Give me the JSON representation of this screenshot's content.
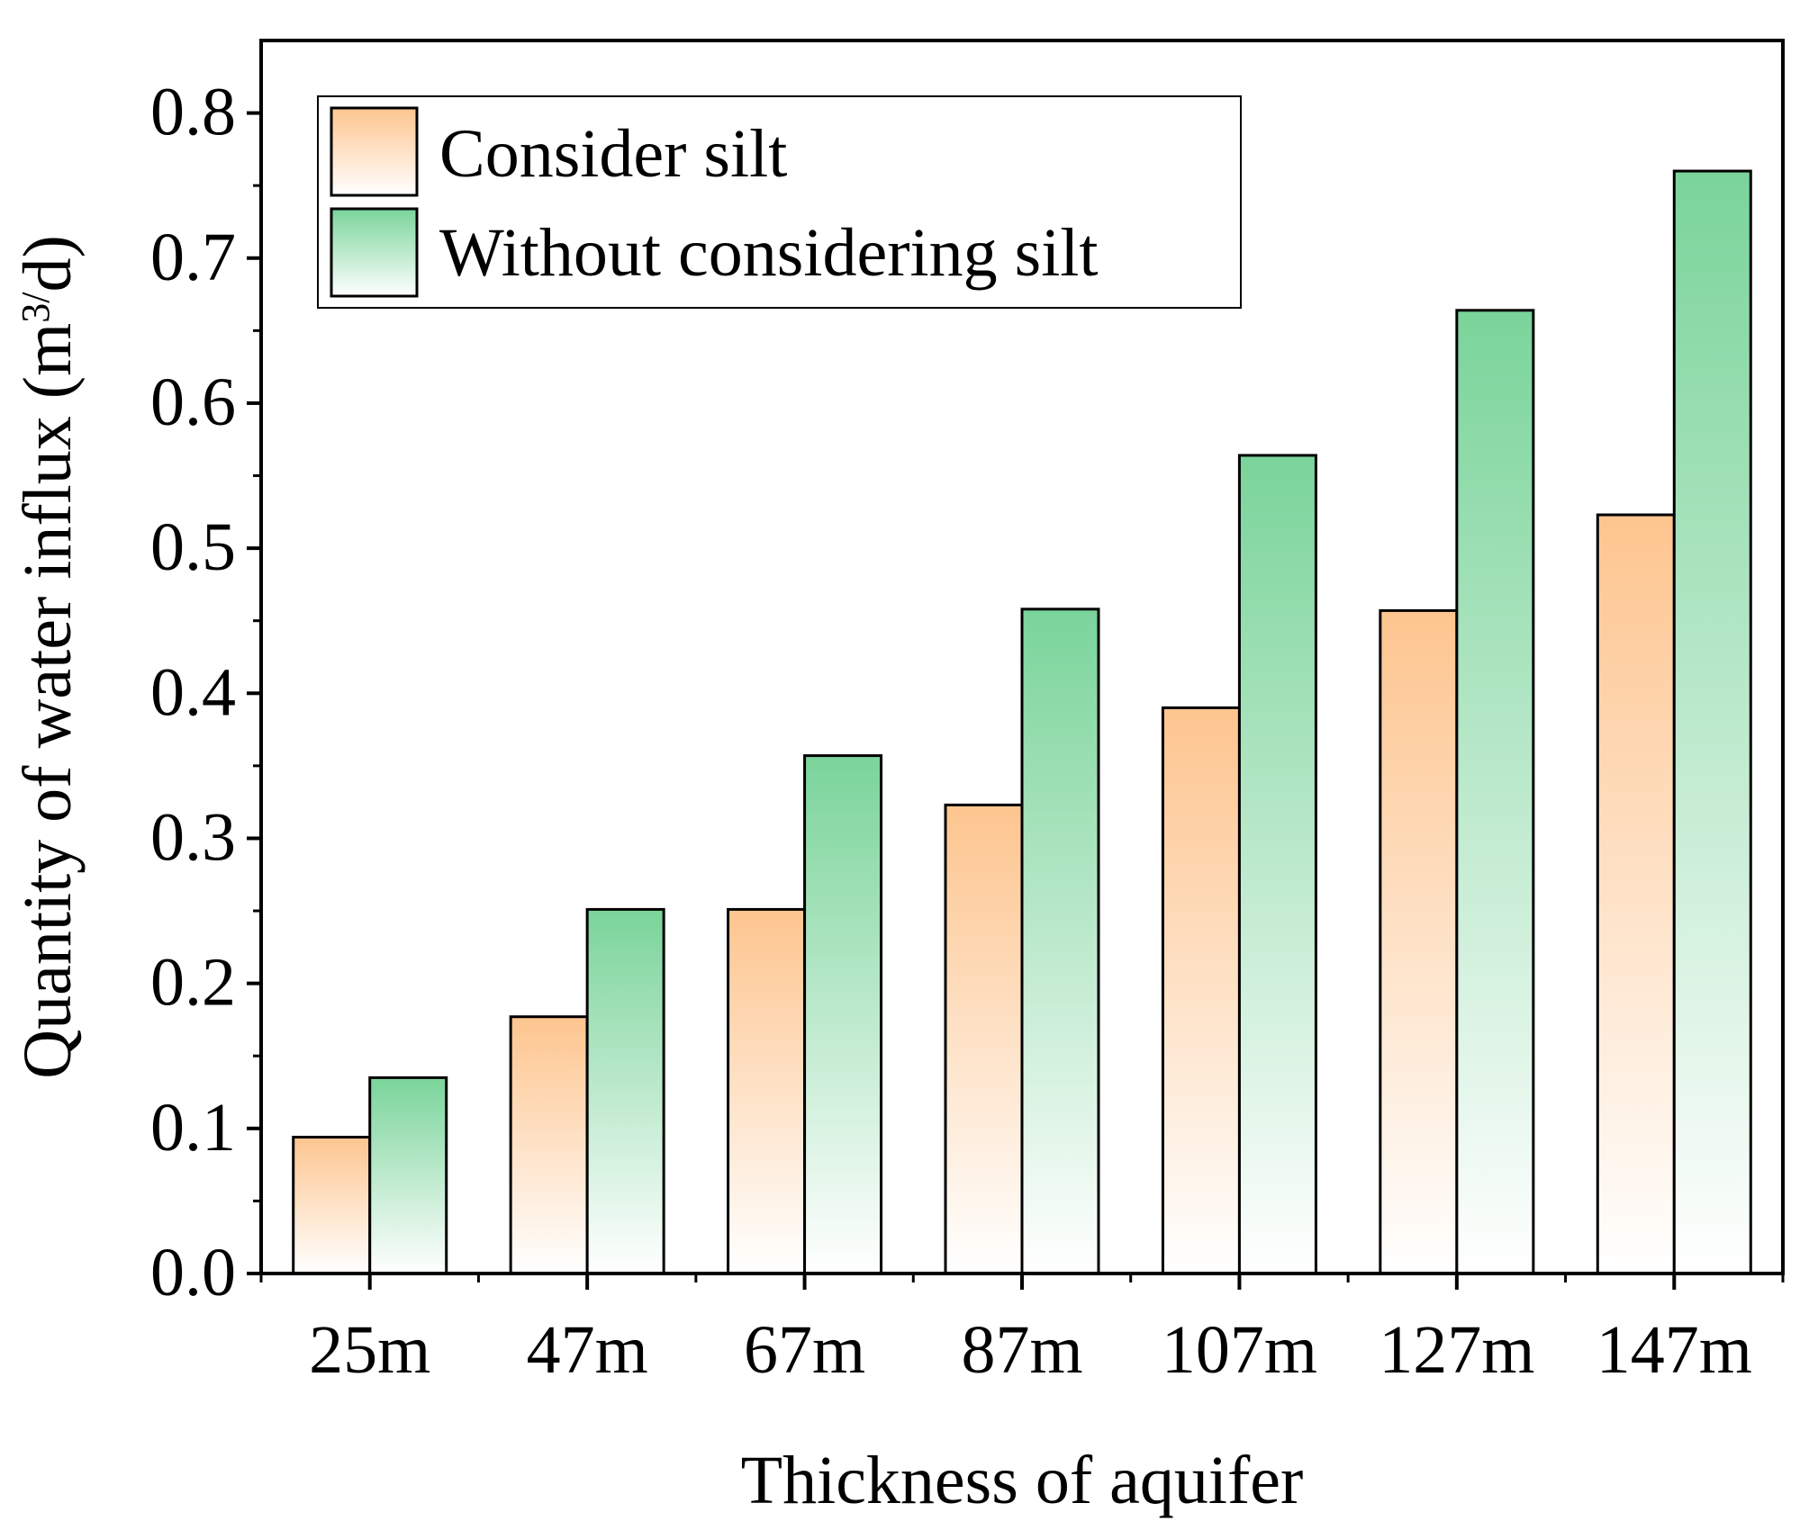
{
  "chart_data": {
    "type": "bar",
    "title": "",
    "xlabel": "Thickness of aquifer",
    "ylabel": {
      "main": "Quantity of water influx (m",
      "sup": "3/",
      "tail": "d)"
    },
    "categories": [
      "25m",
      "47m",
      "67m",
      "87m",
      "107m",
      "127m",
      "147m"
    ],
    "series": [
      {
        "name": "Consider silt",
        "values": [
          0.094,
          0.177,
          0.251,
          0.323,
          0.39,
          0.457,
          0.523
        ],
        "color_top": "#fdc58f",
        "color_bottom": "#ffffff"
      },
      {
        "name": "Without considering silt",
        "values": [
          0.135,
          0.251,
          0.357,
          0.458,
          0.564,
          0.664,
          0.76
        ],
        "color_top": "#7ad49a",
        "color_bottom": "#ffffff"
      }
    ],
    "ylim": [
      0.0,
      0.85
    ],
    "yticks": [
      0.0,
      0.1,
      0.2,
      0.3,
      0.4,
      0.5,
      0.6,
      0.7,
      0.8
    ],
    "ytick_labels": [
      "0.0",
      "0.1",
      "0.2",
      "0.3",
      "0.4",
      "0.5",
      "0.6",
      "0.7",
      "0.8"
    ],
    "grid": false,
    "legend_position": "top-left"
  }
}
